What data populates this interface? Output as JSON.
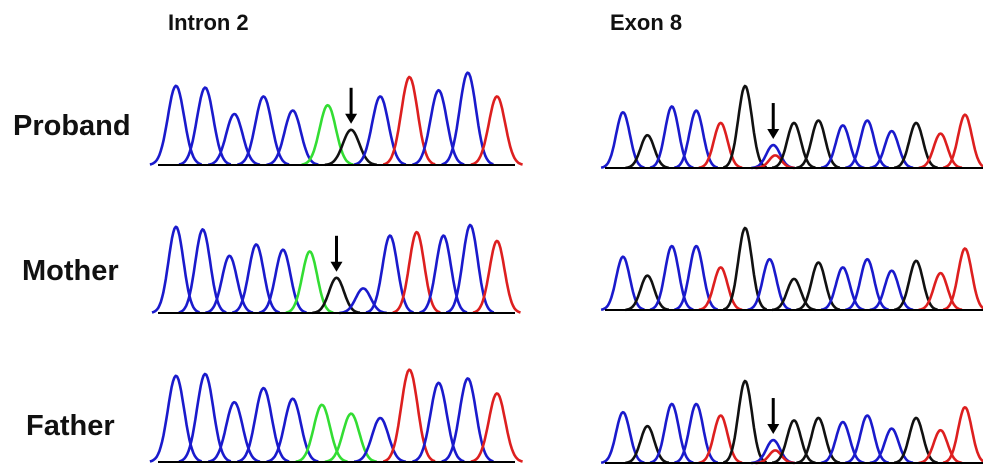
{
  "columns": [
    {
      "id": "intron2",
      "title": "Intron 2"
    },
    {
      "id": "exon8",
      "title": "Exon 8"
    }
  ],
  "rows": [
    {
      "id": "proband",
      "label": "Proband"
    },
    {
      "id": "mother",
      "label": "Mother"
    },
    {
      "id": "father",
      "label": "Father"
    }
  ],
  "colors": {
    "A": "#1f9e1f",
    "C": "#1a1acc",
    "G": "#111111",
    "T": "#dd1f1f",
    "green_bright": "#33dd33",
    "baseline": "#000000",
    "arrow": "#000000"
  },
  "icons": [
    "variant-arrow-icon"
  ],
  "panels": {
    "intron2": {
      "proband": {
        "variant_index": 6,
        "peaks": [
          {
            "b": "C",
            "h": 0.9
          },
          {
            "b": "C",
            "h": 0.88
          },
          {
            "b": "C",
            "h": 0.58
          },
          {
            "b": "C",
            "h": 0.78
          },
          {
            "b": "C",
            "h": 0.62
          },
          {
            "b": "A",
            "h": 0.68,
            "o": 0.2
          },
          {
            "b": "G",
            "h": 0.4
          },
          {
            "b": "C",
            "h": 0.78
          },
          {
            "b": "T",
            "h": 1.0
          },
          {
            "b": "C",
            "h": 0.85
          },
          {
            "b": "C",
            "h": 1.05
          },
          {
            "b": "T",
            "h": 0.78
          }
        ]
      },
      "mother": {
        "variant_index": 6,
        "peaks": [
          {
            "b": "C",
            "h": 0.98
          },
          {
            "b": "C",
            "h": 0.95
          },
          {
            "b": "C",
            "h": 0.65
          },
          {
            "b": "C",
            "h": 0.78
          },
          {
            "b": "C",
            "h": 0.72
          },
          {
            "b": "A",
            "h": 0.7
          },
          {
            "b": "G",
            "h": 0.4
          },
          {
            "b": "C",
            "h": 0.28
          },
          {
            "b": "C",
            "h": 0.88
          },
          {
            "b": "T",
            "h": 0.92
          },
          {
            "b": "C",
            "h": 0.88
          },
          {
            "b": "C",
            "h": 1.0
          },
          {
            "b": "T",
            "h": 0.82
          }
        ]
      },
      "father": {
        "variant_index": null,
        "peaks": [
          {
            "b": "C",
            "h": 0.98
          },
          {
            "b": "C",
            "h": 1.0
          },
          {
            "b": "C",
            "h": 0.68
          },
          {
            "b": "C",
            "h": 0.84
          },
          {
            "b": "C",
            "h": 0.72
          },
          {
            "b": "A",
            "h": 0.65
          },
          {
            "b": "A",
            "h": 0.55
          },
          {
            "b": "C",
            "h": 0.5
          },
          {
            "b": "T",
            "h": 1.05
          },
          {
            "b": "C",
            "h": 0.9
          },
          {
            "b": "C",
            "h": 0.95
          },
          {
            "b": "T",
            "h": 0.78
          }
        ]
      }
    },
    "exon8": {
      "proband": {
        "variant_index": 6,
        "peaks": [
          {
            "b": "C",
            "h": 0.68
          },
          {
            "b": "G",
            "h": 0.4
          },
          {
            "b": "C",
            "h": 0.75
          },
          {
            "b": "C",
            "h": 0.7
          },
          {
            "b": "T",
            "h": 0.55
          },
          {
            "b": "G",
            "h": 1.0
          },
          {
            "b": "C",
            "h": 0.28,
            "o": 0.15
          },
          {
            "b": "G",
            "h": 0.55
          },
          {
            "b": "G",
            "h": 0.58
          },
          {
            "b": "C",
            "h": 0.52
          },
          {
            "b": "C",
            "h": 0.58
          },
          {
            "b": "C",
            "h": 0.45
          },
          {
            "b": "G",
            "h": 0.55
          },
          {
            "b": "T",
            "h": 0.42
          },
          {
            "b": "T",
            "h": 0.65
          }
        ]
      },
      "mother": {
        "variant_index": null,
        "peaks": [
          {
            "b": "C",
            "h": 0.65
          },
          {
            "b": "G",
            "h": 0.42
          },
          {
            "b": "C",
            "h": 0.78
          },
          {
            "b": "C",
            "h": 0.78
          },
          {
            "b": "T",
            "h": 0.52
          },
          {
            "b": "G",
            "h": 1.0
          },
          {
            "b": "C",
            "h": 0.62
          },
          {
            "b": "G",
            "h": 0.38
          },
          {
            "b": "G",
            "h": 0.58
          },
          {
            "b": "C",
            "h": 0.52
          },
          {
            "b": "C",
            "h": 0.62
          },
          {
            "b": "C",
            "h": 0.48
          },
          {
            "b": "G",
            "h": 0.6
          },
          {
            "b": "T",
            "h": 0.45
          },
          {
            "b": "T",
            "h": 0.75
          }
        ]
      },
      "father": {
        "variant_index": 6,
        "peaks": [
          {
            "b": "C",
            "h": 0.62
          },
          {
            "b": "G",
            "h": 0.45
          },
          {
            "b": "C",
            "h": 0.72
          },
          {
            "b": "C",
            "h": 0.72
          },
          {
            "b": "T",
            "h": 0.58
          },
          {
            "b": "G",
            "h": 1.0
          },
          {
            "b": "C",
            "h": 0.28,
            "o": 0.15
          },
          {
            "b": "G",
            "h": 0.52
          },
          {
            "b": "G",
            "h": 0.55
          },
          {
            "b": "C",
            "h": 0.5
          },
          {
            "b": "C",
            "h": 0.58
          },
          {
            "b": "C",
            "h": 0.42
          },
          {
            "b": "G",
            "h": 0.55
          },
          {
            "b": "T",
            "h": 0.4
          },
          {
            "b": "T",
            "h": 0.68
          }
        ]
      }
    }
  }
}
